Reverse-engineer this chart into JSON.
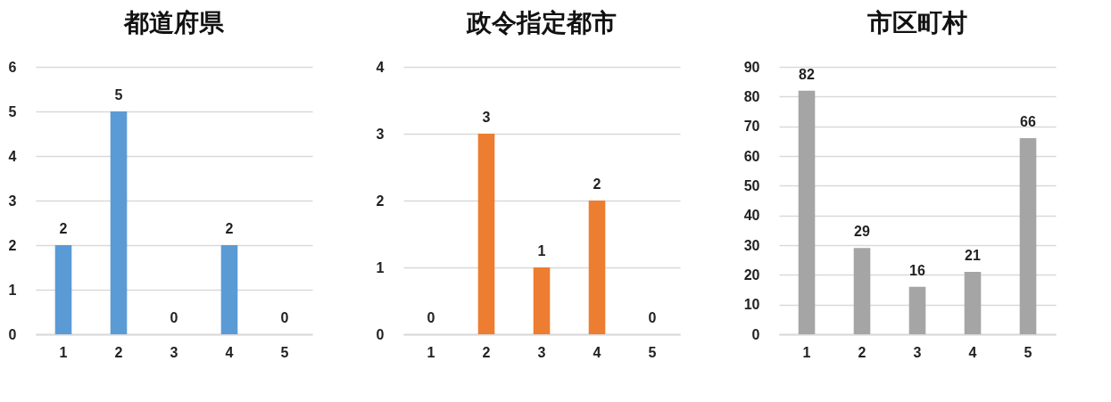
{
  "chart_data": [
    {
      "type": "bar",
      "title": "都道府県",
      "categories": [
        "1",
        "2",
        "3",
        "4",
        "5"
      ],
      "values": [
        2,
        5,
        0,
        2,
        0
      ],
      "color": "#5b9bd5",
      "ylim": [
        0,
        6
      ],
      "yticks": [
        0,
        1,
        2,
        3,
        4,
        5,
        6
      ],
      "grid": "y",
      "data_labels": true
    },
    {
      "type": "bar",
      "title": "政令指定都市",
      "categories": [
        "1",
        "2",
        "3",
        "4",
        "5"
      ],
      "values": [
        0,
        3,
        1,
        2,
        0
      ],
      "color": "#ed7d31",
      "ylim": [
        0,
        4
      ],
      "yticks": [
        0,
        1,
        2,
        3,
        4
      ],
      "grid": "y",
      "data_labels": true
    },
    {
      "type": "bar",
      "title": "市区町村",
      "categories": [
        "1",
        "2",
        "3",
        "4",
        "5"
      ],
      "values": [
        82,
        29,
        16,
        21,
        66
      ],
      "color": "#a5a5a5",
      "ylim": [
        0,
        90
      ],
      "yticks": [
        0,
        10,
        20,
        30,
        40,
        50,
        60,
        70,
        80,
        90
      ],
      "grid": "y",
      "data_labels": true
    }
  ]
}
